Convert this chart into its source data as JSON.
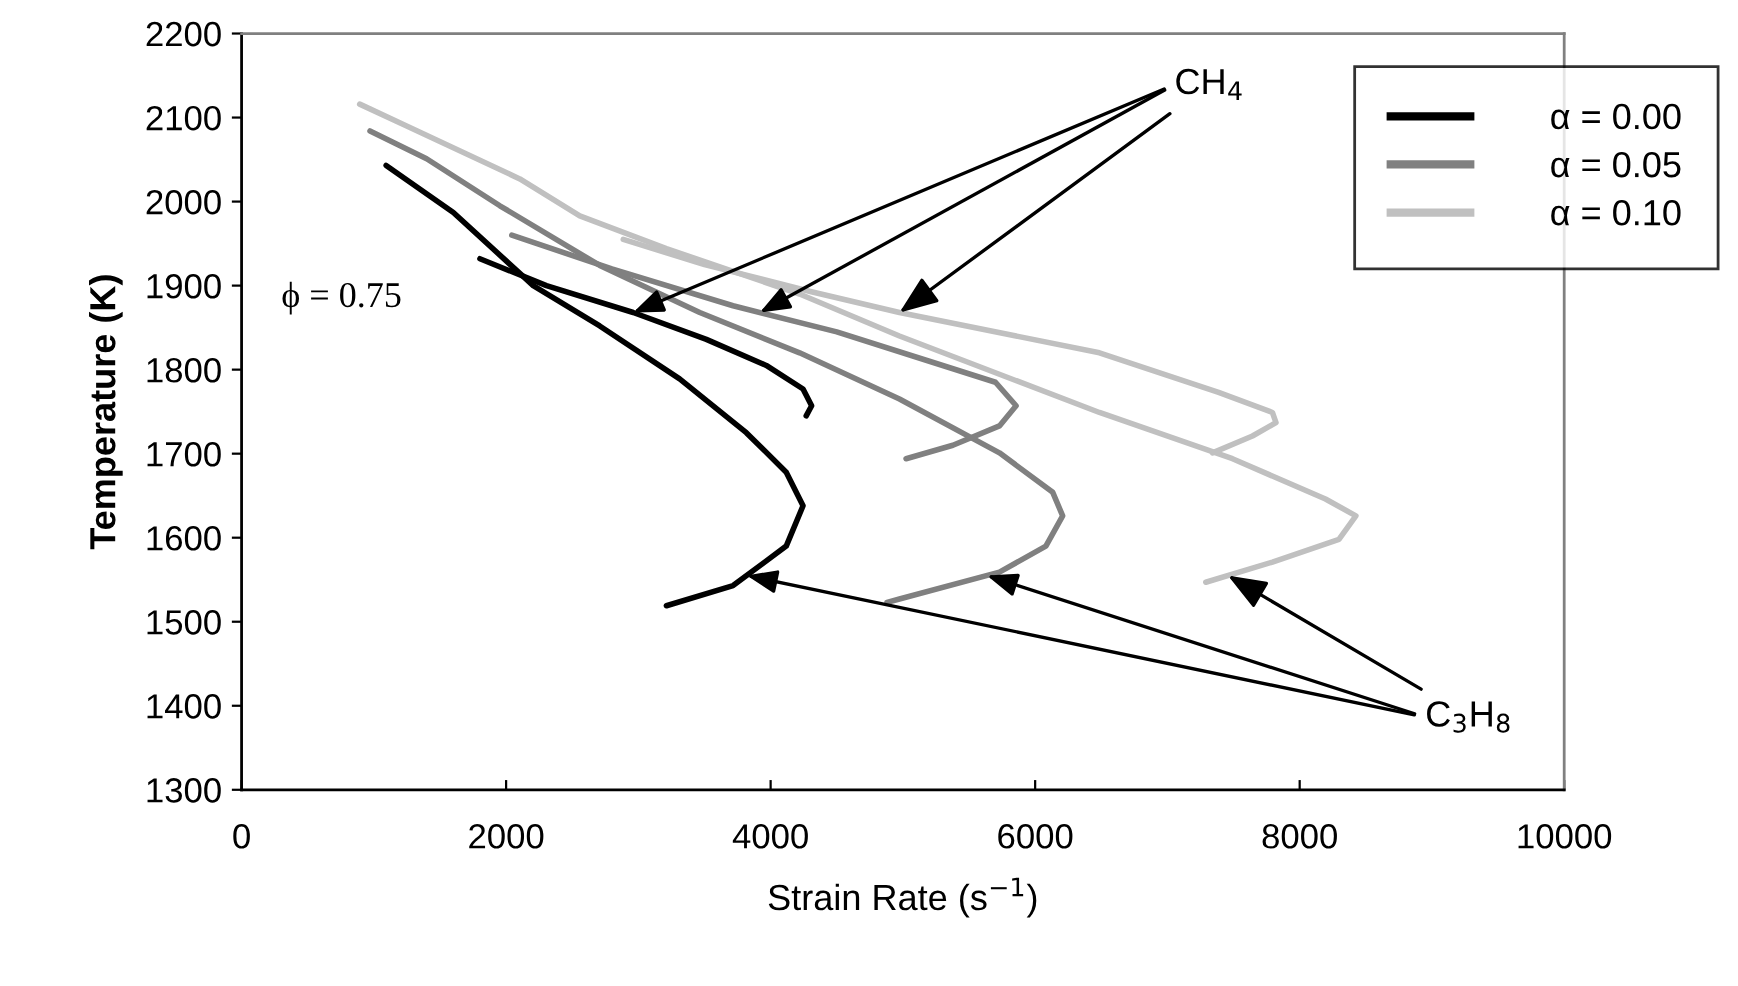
{
  "chart_data": {
    "type": "line",
    "xlabel": "Strain Rate (s$^{−1}$)",
    "ylabel": "Temperature (K)",
    "xlim": [
      0,
      10000
    ],
    "xticks": [
      0,
      2000,
      4000,
      6000,
      8000,
      10000
    ],
    "ylim": [
      1300,
      2200
    ],
    "yticks": [
      1300,
      1400,
      1500,
      1600,
      1700,
      1800,
      1900,
      2000,
      2100,
      2200
    ],
    "grid": false,
    "legend": "top right",
    "marker": "none",
    "line_style": "solid",
    "series": [
      {
        "name": "α = 0.00",
        "color": "#000000",
        "x": [
          1802,
          2305,
          2961,
          3514,
          3967,
          4245,
          4310,
          4269
        ],
        "values": [
          1932,
          1900,
          1868,
          1836,
          1805,
          1777,
          1757,
          1745
        ]
      },
      {
        "color": "#000000",
        "x": [
          1093,
          1601,
          2205,
          2708,
          3312,
          3816,
          4118,
          4245,
          4118,
          3716,
          3212
        ],
        "values": [
          2043,
          1987,
          1900,
          1852,
          1789,
          1725,
          1678,
          1638,
          1590,
          1543,
          1519
        ]
      },
      {
        "name": "α = 0.05",
        "color": "#808080",
        "x": [
          2043,
          2800,
          3716,
          4500,
          5200,
          5700,
          5856,
          5730,
          5378,
          5024
        ],
        "values": [
          1960,
          1920,
          1876,
          1845,
          1810,
          1785,
          1757,
          1733,
          1710,
          1694
        ]
      },
      {
        "color": "#808080",
        "x": [
          971,
          1399,
          1953,
          2708,
          3464,
          4219,
          4974,
          5730,
          6133,
          6208,
          6081,
          5730,
          4974,
          4880
        ],
        "values": [
          2084,
          2051,
          1995,
          1924,
          1868,
          1820,
          1765,
          1701,
          1654,
          1626,
          1590,
          1559,
          1527,
          1523
        ]
      },
      {
        "name": "α = 0.10",
        "color": "#c0c0c0",
        "x": [
          2886,
          3500,
          4300,
          4974,
          6486,
          7387,
          7794,
          7821,
          7643,
          7341
        ],
        "values": [
          1955,
          1925,
          1893,
          1868,
          1820,
          1773,
          1749,
          1737,
          1721,
          1701
        ]
      },
      {
        "color": "#c0c0c0",
        "x": [
          893,
          1248,
          2104,
          2557,
          3212,
          4219,
          4974,
          6486,
          7492,
          8195,
          8425,
          8297,
          7794,
          7290
        ],
        "values": [
          2116,
          2090,
          2027,
          1983,
          1944,
          1890,
          1840,
          1749,
          1694,
          1646,
          1626,
          1598,
          1571,
          1547
        ]
      }
    ],
    "annotations": [
      {
        "text": "CH$_{4}$",
        "x": 4974,
        "y": 1868
      },
      {
        "text": "C$_{3}$H$_{8}$",
        "x": 7458,
        "y": 1555
      },
      "ϕ = 0.75"
    ]
  }
}
